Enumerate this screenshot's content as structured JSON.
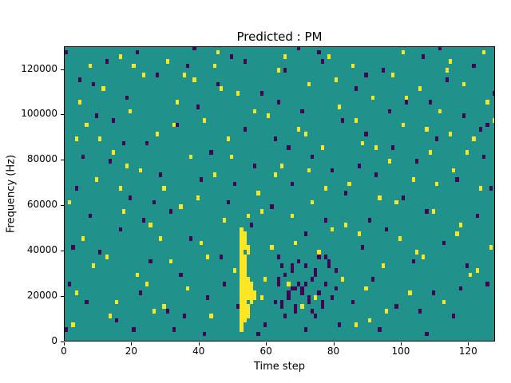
{
  "chart_data": {
    "type": "heatmap",
    "title": "Predicted : PM",
    "xlabel": "Time step",
    "ylabel": "Frequency (Hz)",
    "x_bins": 128,
    "y_bins": 65,
    "x_max": 128,
    "y_max": 130000,
    "xticks": [
      0,
      20,
      40,
      60,
      80,
      100,
      120
    ],
    "yticks": [
      0,
      20000,
      40000,
      60000,
      80000,
      100000,
      120000
    ],
    "grid": false,
    "legend": "none",
    "colors": {
      "background": "#21918c",
      "high": "#fde725",
      "low": "#440154"
    },
    "cells": {
      "high": [
        [
          2,
          3
        ],
        [
          3,
          10
        ],
        [
          5,
          22
        ],
        [
          6,
          47
        ],
        [
          7,
          60
        ],
        [
          9,
          35
        ],
        [
          11,
          55
        ],
        [
          12,
          18
        ],
        [
          14,
          41
        ],
        [
          15,
          8
        ],
        [
          16,
          62
        ],
        [
          17,
          28
        ],
        [
          19,
          50
        ],
        [
          21,
          14
        ],
        [
          22,
          37
        ],
        [
          23,
          58
        ],
        [
          25,
          25
        ],
        [
          26,
          6
        ],
        [
          27,
          45
        ],
        [
          29,
          33
        ],
        [
          30,
          61
        ],
        [
          31,
          17
        ],
        [
          33,
          52
        ],
        [
          34,
          29
        ],
        [
          36,
          11
        ],
        [
          37,
          40
        ],
        [
          38,
          57
        ],
        [
          40,
          21
        ],
        [
          41,
          48
        ],
        [
          43,
          5
        ],
        [
          44,
          36
        ],
        [
          45,
          63
        ],
        [
          47,
          26
        ],
        [
          48,
          44
        ],
        [
          50,
          15
        ],
        [
          51,
          54
        ],
        [
          57,
          32
        ],
        [
          58,
          9
        ],
        [
          60,
          49
        ],
        [
          61,
          20
        ],
        [
          63,
          59
        ],
        [
          64,
          38
        ],
        [
          66,
          12
        ],
        [
          67,
          27
        ],
        [
          69,
          46
        ],
        [
          70,
          7
        ],
        [
          72,
          56
        ],
        [
          73,
          30
        ],
        [
          75,
          19
        ],
        [
          76,
          42
        ],
        [
          78,
          62
        ],
        [
          79,
          24
        ],
        [
          81,
          51
        ],
        [
          82,
          13
        ],
        [
          84,
          34
        ],
        [
          85,
          60
        ],
        [
          87,
          23
        ],
        [
          88,
          43
        ],
        [
          90,
          4
        ],
        [
          91,
          53
        ],
        [
          93,
          31
        ],
        [
          94,
          16
        ],
        [
          96,
          39
        ],
        [
          97,
          58
        ],
        [
          99,
          22
        ],
        [
          100,
          47
        ],
        [
          102,
          10
        ],
        [
          103,
          35
        ],
        [
          105,
          55
        ],
        [
          106,
          18
        ],
        [
          108,
          41
        ],
        [
          109,
          28
        ],
        [
          111,
          50
        ],
        [
          112,
          8
        ],
        [
          114,
          61
        ],
        [
          115,
          37
        ],
        [
          117,
          25
        ],
        [
          118,
          56
        ],
        [
          120,
          14
        ],
        [
          121,
          44
        ],
        [
          123,
          33
        ],
        [
          124,
          63
        ],
        [
          126,
          20
        ],
        [
          127,
          48
        ],
        [
          1,
          30
        ],
        [
          4,
          52
        ],
        [
          8,
          16
        ],
        [
          10,
          44
        ],
        [
          13,
          5
        ],
        [
          18,
          38
        ],
        [
          20,
          60
        ],
        [
          24,
          12
        ],
        [
          28,
          22
        ],
        [
          32,
          47
        ],
        [
          35,
          58
        ],
        [
          39,
          31
        ],
        [
          42,
          18
        ],
        [
          46,
          55
        ],
        [
          49,
          40
        ],
        [
          52,
          2
        ],
        [
          54,
          27
        ],
        [
          56,
          50
        ],
        [
          59,
          13
        ],
        [
          62,
          36
        ],
        [
          65,
          62
        ],
        [
          68,
          21
        ],
        [
          71,
          45
        ],
        [
          74,
          9
        ],
        [
          77,
          33
        ],
        [
          80,
          57
        ],
        [
          83,
          25
        ],
        [
          86,
          48
        ],
        [
          89,
          11
        ],
        [
          92,
          42
        ],
        [
          95,
          6
        ],
        [
          98,
          30
        ],
        [
          101,
          53
        ],
        [
          104,
          19
        ],
        [
          107,
          46
        ],
        [
          110,
          34
        ],
        [
          113,
          59
        ],
        [
          116,
          23
        ],
        [
          119,
          41
        ],
        [
          122,
          15
        ],
        [
          125,
          52
        ],
        [
          3,
          44
        ],
        [
          16,
          33
        ],
        [
          29,
          7
        ],
        [
          44,
          60
        ],
        [
          58,
          28
        ],
        [
          72,
          37
        ],
        [
          86,
          3
        ],
        [
          100,
          63
        ],
        [
          114,
          45
        ],
        [
          52,
          3
        ],
        [
          52,
          4
        ],
        [
          52,
          5
        ],
        [
          52,
          6
        ],
        [
          52,
          7
        ],
        [
          52,
          8
        ],
        [
          52,
          9
        ],
        [
          52,
          10
        ],
        [
          52,
          11
        ],
        [
          52,
          12
        ],
        [
          52,
          13
        ],
        [
          52,
          14
        ],
        [
          52,
          15
        ],
        [
          52,
          16
        ],
        [
          52,
          17
        ],
        [
          52,
          18
        ],
        [
          52,
          19
        ],
        [
          52,
          20
        ],
        [
          52,
          21
        ],
        [
          52,
          22
        ],
        [
          52,
          23
        ],
        [
          52,
          24
        ],
        [
          53,
          4
        ],
        [
          53,
          5
        ],
        [
          53,
          6
        ],
        [
          53,
          7
        ],
        [
          53,
          8
        ],
        [
          53,
          9
        ],
        [
          53,
          10
        ],
        [
          53,
          11
        ],
        [
          53,
          12
        ],
        [
          53,
          13
        ],
        [
          53,
          14
        ],
        [
          53,
          15
        ],
        [
          53,
          16
        ],
        [
          53,
          17
        ],
        [
          53,
          18
        ],
        [
          53,
          20
        ],
        [
          53,
          21
        ],
        [
          53,
          22
        ],
        [
          53,
          23
        ],
        [
          54,
          5
        ],
        [
          54,
          6
        ],
        [
          54,
          7
        ],
        [
          54,
          9
        ],
        [
          54,
          10
        ],
        [
          54,
          11
        ],
        [
          54,
          12
        ],
        [
          54,
          13
        ],
        [
          54,
          19
        ],
        [
          54,
          20
        ],
        [
          55,
          8
        ],
        [
          55,
          9
        ],
        [
          55,
          10
        ],
        [
          55,
          11
        ],
        [
          55,
          12
        ],
        [
          56,
          9
        ],
        [
          56,
          10
        ]
      ],
      "low": [
        [
          0,
          63
        ],
        [
          1,
          12
        ],
        [
          3,
          33
        ],
        [
          4,
          57
        ],
        [
          6,
          8
        ],
        [
          7,
          27
        ],
        [
          9,
          49
        ],
        [
          10,
          19
        ],
        [
          12,
          61
        ],
        [
          13,
          39
        ],
        [
          15,
          4
        ],
        [
          16,
          24
        ],
        [
          18,
          53
        ],
        [
          19,
          31
        ],
        [
          21,
          63
        ],
        [
          22,
          10
        ],
        [
          24,
          43
        ],
        [
          25,
          17
        ],
        [
          27,
          58
        ],
        [
          28,
          36
        ],
        [
          30,
          6
        ],
        [
          31,
          28
        ],
        [
          33,
          47
        ],
        [
          34,
          14
        ],
        [
          36,
          60
        ],
        [
          37,
          22
        ],
        [
          39,
          51
        ],
        [
          40,
          35
        ],
        [
          42,
          9
        ],
        [
          43,
          41
        ],
        [
          45,
          56
        ],
        [
          46,
          18
        ],
        [
          48,
          30
        ],
        [
          49,
          62
        ],
        [
          51,
          7
        ],
        [
          53,
          46
        ],
        [
          55,
          25
        ],
        [
          56,
          38
        ],
        [
          58,
          54
        ],
        [
          59,
          3
        ],
        [
          61,
          29
        ],
        [
          62,
          44
        ],
        [
          64,
          16
        ],
        [
          65,
          59
        ],
        [
          67,
          34
        ],
        [
          68,
          11
        ],
        [
          70,
          50
        ],
        [
          71,
          23
        ],
        [
          73,
          40
        ],
        [
          74,
          5
        ],
        [
          76,
          61
        ],
        [
          77,
          26
        ],
        [
          79,
          37
        ],
        [
          80,
          15
        ],
        [
          82,
          48
        ],
        [
          83,
          32
        ],
        [
          85,
          8
        ],
        [
          86,
          55
        ],
        [
          88,
          20
        ],
        [
          89,
          45
        ],
        [
          91,
          13
        ],
        [
          92,
          36
        ],
        [
          94,
          59
        ],
        [
          95,
          24
        ],
        [
          97,
          42
        ],
        [
          98,
          7
        ],
        [
          100,
          31
        ],
        [
          101,
          52
        ],
        [
          103,
          17
        ],
        [
          104,
          39
        ],
        [
          106,
          62
        ],
        [
          107,
          28
        ],
        [
          109,
          10
        ],
        [
          110,
          44
        ],
        [
          112,
          21
        ],
        [
          113,
          57
        ],
        [
          115,
          5
        ],
        [
          116,
          35
        ],
        [
          118,
          49
        ],
        [
          119,
          16
        ],
        [
          121,
          60
        ],
        [
          122,
          27
        ],
        [
          124,
          40
        ],
        [
          125,
          12
        ],
        [
          127,
          54
        ],
        [
          126,
          33
        ],
        [
          2,
          20
        ],
        [
          20,
          2
        ],
        [
          38,
          64
        ],
        [
          57,
          1
        ],
        [
          75,
          63
        ],
        [
          93,
          2
        ],
        [
          111,
          64
        ],
        [
          14,
          48
        ],
        [
          26,
          30
        ],
        [
          41,
          1
        ],
        [
          66,
          42
        ],
        [
          81,
          3
        ],
        [
          96,
          50
        ],
        [
          117,
          11
        ],
        [
          5,
          40
        ],
        [
          23,
          26
        ],
        [
          47,
          12
        ],
        [
          63,
          52
        ],
        [
          87,
          38
        ],
        [
          105,
          6
        ],
        [
          123,
          46
        ],
        [
          8,
          56
        ],
        [
          32,
          2
        ],
        [
          50,
          34
        ],
        [
          69,
          64
        ],
        [
          90,
          26
        ],
        [
          108,
          52
        ],
        [
          0,
          2
        ],
        [
          17,
          43
        ],
        [
          35,
          5
        ],
        [
          53,
          61
        ],
        [
          71,
          2
        ],
        [
          89,
          58
        ],
        [
          107,
          1
        ],
        [
          125,
          47
        ],
        [
          62,
          8
        ],
        [
          63,
          12
        ],
        [
          63,
          13
        ],
        [
          64,
          7
        ],
        [
          64,
          8
        ],
        [
          65,
          14
        ],
        [
          66,
          9
        ],
        [
          66,
          10
        ],
        [
          67,
          15
        ],
        [
          67,
          16
        ],
        [
          68,
          6
        ],
        [
          68,
          7
        ],
        [
          69,
          12
        ],
        [
          70,
          10
        ],
        [
          70,
          11
        ],
        [
          71,
          16
        ],
        [
          72,
          8
        ],
        [
          72,
          9
        ],
        [
          73,
          13
        ],
        [
          74,
          14
        ],
        [
          74,
          15
        ],
        [
          75,
          10
        ],
        [
          76,
          7
        ],
        [
          76,
          8
        ],
        [
          77,
          12
        ],
        [
          78,
          16
        ],
        [
          78,
          17
        ],
        [
          79,
          9
        ],
        [
          80,
          11
        ],
        [
          65,
          5
        ],
        [
          69,
          17
        ],
        [
          73,
          6
        ],
        [
          77,
          18
        ],
        [
          63,
          18
        ],
        [
          75,
          18
        ],
        [
          71,
          12
        ],
        [
          67,
          11
        ]
      ]
    }
  }
}
